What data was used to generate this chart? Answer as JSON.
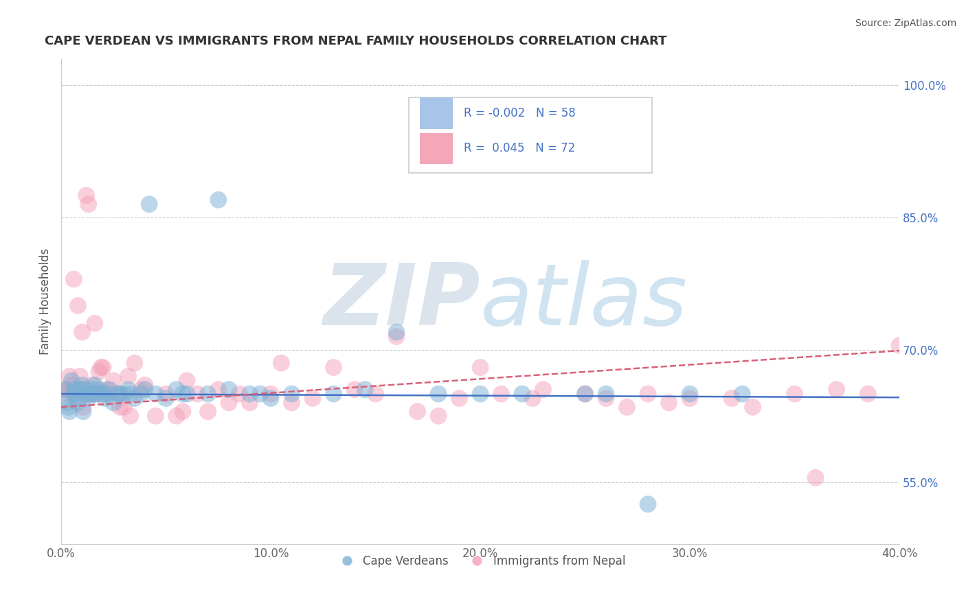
{
  "title": "CAPE VERDEAN VS IMMIGRANTS FROM NEPAL FAMILY HOUSEHOLDS CORRELATION CHART",
  "source": "Source: ZipAtlas.com",
  "ylabel": "Family Households",
  "xlim": [
    0.0,
    40.0
  ],
  "ylim": [
    48.0,
    103.0
  ],
  "yticks": [
    55.0,
    70.0,
    85.0,
    100.0
  ],
  "xticks": [
    0.0,
    10.0,
    20.0,
    30.0,
    40.0
  ],
  "xtick_labels": [
    "0.0%",
    "10.0%",
    "20.0%",
    "30.0%",
    "40.0%"
  ],
  "ytick_labels": [
    "55.0%",
    "70.0%",
    "85.0%",
    "100.0%"
  ],
  "blue_color": "#7bafd4",
  "pink_color": "#f4a0b8",
  "blue_line_color": "#4472c4",
  "pink_line_color": "#d9607a",
  "background_color": "#ffffff",
  "grid_color": "#cccccc",
  "watermark": "ZIPAtlas",
  "watermark_color": "#c5d8ea",
  "blue_scatter_x": [
    0.2,
    0.3,
    0.4,
    0.5,
    0.6,
    0.7,
    0.8,
    0.9,
    1.0,
    1.1,
    1.2,
    1.3,
    1.4,
    1.5,
    1.6,
    1.7,
    1.8,
    2.0,
    2.1,
    2.3,
    2.5,
    2.7,
    3.0,
    3.2,
    3.5,
    3.8,
    4.0,
    4.5,
    5.0,
    5.5,
    6.0,
    7.0,
    8.0,
    9.0,
    10.0,
    11.0,
    13.0,
    14.5,
    16.0,
    18.0,
    20.0,
    22.0,
    25.0,
    26.0,
    28.0,
    30.0,
    32.5,
    0.35,
    0.65,
    1.05,
    1.55,
    2.2,
    2.8,
    3.3,
    4.2,
    5.8,
    7.5,
    9.5
  ],
  "blue_scatter_y": [
    65.5,
    64.0,
    63.0,
    66.5,
    65.0,
    64.5,
    64.0,
    65.5,
    66.0,
    65.5,
    65.0,
    64.5,
    65.0,
    65.5,
    66.0,
    65.0,
    65.5,
    65.0,
    64.5,
    65.5,
    64.0,
    65.0,
    65.0,
    65.5,
    64.5,
    65.0,
    65.5,
    65.0,
    64.5,
    65.5,
    65.0,
    65.0,
    65.5,
    65.0,
    64.5,
    65.0,
    65.0,
    65.5,
    72.0,
    65.0,
    65.0,
    65.0,
    65.0,
    65.0,
    52.5,
    65.0,
    65.0,
    63.5,
    65.5,
    63.0,
    65.0,
    65.0,
    65.0,
    65.0,
    86.5,
    65.0,
    87.0,
    65.0
  ],
  "pink_scatter_x": [
    0.2,
    0.3,
    0.4,
    0.5,
    0.6,
    0.7,
    0.8,
    0.9,
    1.0,
    1.1,
    1.2,
    1.3,
    1.4,
    1.5,
    1.6,
    1.7,
    1.8,
    1.9,
    2.0,
    2.1,
    2.2,
    2.5,
    2.7,
    3.0,
    3.2,
    3.5,
    3.8,
    4.0,
    4.5,
    5.0,
    5.5,
    6.0,
    6.5,
    7.0,
    7.5,
    8.0,
    8.5,
    9.0,
    10.0,
    11.0,
    12.0,
    13.0,
    14.0,
    15.0,
    16.0,
    17.0,
    18.0,
    19.0,
    20.0,
    21.0,
    23.0,
    25.0,
    27.0,
    28.0,
    29.0,
    30.0,
    32.0,
    33.0,
    35.0,
    36.0,
    37.0,
    38.5,
    40.0,
    1.05,
    1.55,
    0.35,
    2.8,
    3.3,
    5.8,
    10.5,
    22.5,
    26.0
  ],
  "pink_scatter_y": [
    65.5,
    65.0,
    67.0,
    66.0,
    78.0,
    65.0,
    75.0,
    67.0,
    72.0,
    65.5,
    87.5,
    86.5,
    65.0,
    66.0,
    73.0,
    65.0,
    67.5,
    68.0,
    68.0,
    65.0,
    65.5,
    66.5,
    65.0,
    63.5,
    67.0,
    68.5,
    65.5,
    66.0,
    62.5,
    65.0,
    62.5,
    66.5,
    65.0,
    63.0,
    65.5,
    64.0,
    65.0,
    64.0,
    65.0,
    64.0,
    64.5,
    68.0,
    65.5,
    65.0,
    71.5,
    63.0,
    62.5,
    64.5,
    68.0,
    65.0,
    65.5,
    65.0,
    63.5,
    65.0,
    64.0,
    64.5,
    64.5,
    63.5,
    65.0,
    55.5,
    65.5,
    65.0,
    70.5,
    63.5,
    65.0,
    65.5,
    63.5,
    62.5,
    63.0,
    68.5,
    64.5,
    64.5
  ],
  "blue_intercept": 65.0,
  "blue_slope": -0.01,
  "pink_intercept": 63.5,
  "pink_slope": 0.16
}
